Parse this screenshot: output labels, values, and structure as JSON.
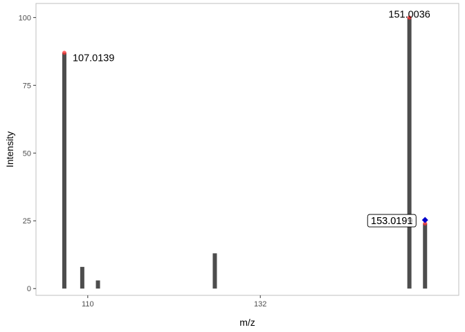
{
  "chart_data": {
    "type": "bar",
    "xlabel": "m/z",
    "ylabel": "Intensity",
    "xlim": [
      103.4,
      157.3
    ],
    "ylim": [
      -2.5,
      105.2
    ],
    "x_ticks": [
      110,
      132
    ],
    "y_ticks": [
      0,
      25,
      50,
      75,
      100
    ],
    "grid": false,
    "peaks": [
      {
        "mz": 107.0139,
        "intensity": 87
      },
      {
        "mz": 109.3,
        "intensity": 8
      },
      {
        "mz": 111.3,
        "intensity": 3
      },
      {
        "mz": 126.2,
        "intensity": 13
      },
      {
        "mz": 151.0036,
        "intensity": 100
      },
      {
        "mz": 153.0,
        "intensity": 24
      }
    ],
    "highlighted_points": [
      {
        "mz": 107.0139,
        "intensity": 87,
        "marker": "circle",
        "color": "#ff3333"
      },
      {
        "mz": 151.0036,
        "intensity": 100,
        "marker": "circle",
        "color": "#ff3333"
      },
      {
        "mz": 153.0,
        "intensity": 24,
        "marker": "circle",
        "color": "#ff3333"
      },
      {
        "mz": 153.0,
        "intensity": 25.3,
        "marker": "diamond",
        "color": "#0000cc"
      }
    ],
    "annotations": [
      {
        "text": "107.0139",
        "mz": 107.0139,
        "intensity": 87,
        "boxed": false
      },
      {
        "text": "151.0036",
        "mz": 151.0036,
        "intensity": 100,
        "boxed": false
      },
      {
        "text": "153.0199",
        "mz": 153.0,
        "intensity": 25.3,
        "boxed": true
      },
      {
        "text": "153.0191",
        "mz": 153.0,
        "intensity": 25.3,
        "boxed": true
      }
    ],
    "colors": {
      "bar": "#4d4d4d",
      "panel_border": "#bfbfbf",
      "circle_marker": "#ff3333",
      "diamond_marker": "#0000cc"
    }
  }
}
